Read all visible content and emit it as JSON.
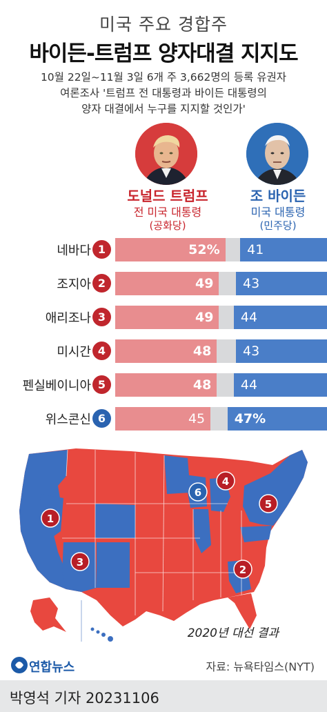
{
  "header": {
    "super_title": "미국 주요 경합주",
    "title": "바이든-트럼프 양자대결 지지도",
    "subtitle_line1": "10월 22일~11월 3일 6개 주 3,662명의 등록 유권자",
    "subtitle_line2": "여론조사 '트럼프 전 대통령과 바이든 대통령의",
    "subtitle_line3": "양자 대결에서 누구를 지지할 것인가'"
  },
  "candidates": {
    "trump": {
      "name": "도널드 트럼프",
      "title": "전 미국 대통령",
      "party": "(공화당)",
      "color": "#c8242c"
    },
    "biden": {
      "name": "조 바이든",
      "title": "미국 대통령",
      "party": "(민주당)",
      "color": "#2a63b0"
    }
  },
  "chart_data": {
    "type": "bar",
    "categories": [
      "네바다",
      "조지아",
      "애리조나",
      "미시간",
      "펜실베이니아",
      "위스콘신"
    ],
    "badges": [
      "1",
      "2",
      "3",
      "4",
      "5",
      "6"
    ],
    "series": [
      {
        "name": "도널드 트럼프",
        "values": [
          52,
          49,
          49,
          48,
          48,
          45
        ],
        "labels": [
          "52%",
          "49",
          "49",
          "48",
          "48",
          "45"
        ],
        "color": "#e88d8f"
      },
      {
        "name": "조 바이든",
        "values": [
          41,
          43,
          44,
          43,
          44,
          47
        ],
        "labels": [
          "41",
          "43",
          "44",
          "43",
          "44",
          "47%"
        ],
        "color": "#4a7ec8"
      }
    ],
    "leader": [
      "trump",
      "trump",
      "trump",
      "trump",
      "trump",
      "biden"
    ]
  },
  "map": {
    "caption": "2020년 대선 결과",
    "republican_color": "#e8483f",
    "democratic_color": "#3c6fc0"
  },
  "footer": {
    "logo_text": "연합뉴스",
    "source": "자료: 뉴욕타임스(NYT)",
    "byline": "박영석 기자  20231106"
  }
}
